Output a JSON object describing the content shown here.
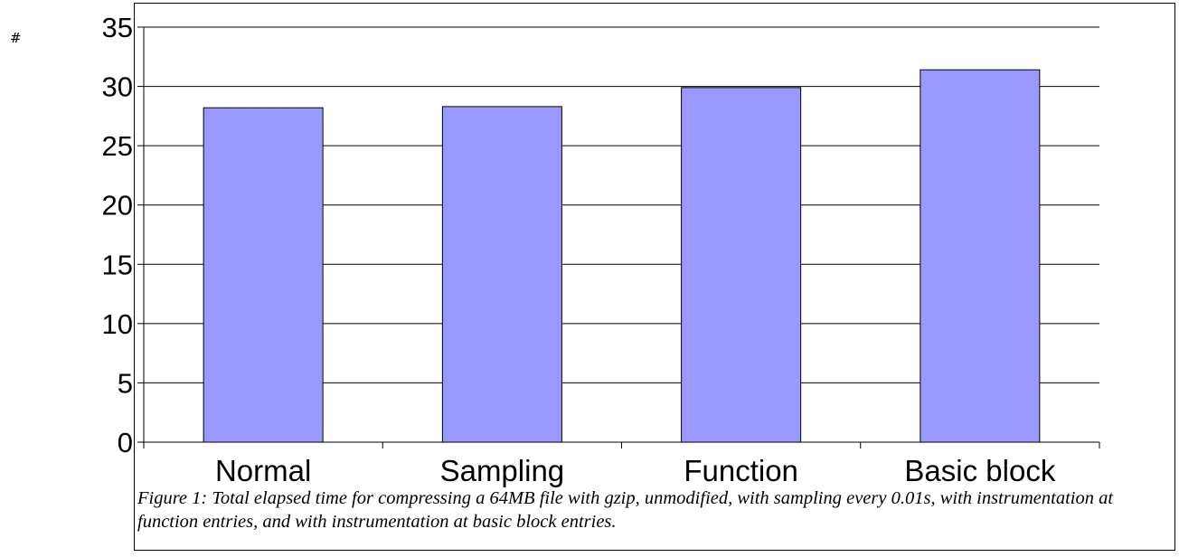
{
  "margin_mark": "#",
  "caption": "Figure 1: Total elapsed time for compressing a 64MB file with gzip, unmodified, with sampling every 0.01s, with instrumentation at function entries, and with instrumentation at basic block entries.",
  "chart_data": {
    "type": "bar",
    "categories": [
      "Normal",
      "Sampling",
      "Function",
      "Basic block"
    ],
    "values": [
      28.2,
      28.3,
      29.9,
      31.4
    ],
    "title": "",
    "xlabel": "",
    "ylabel": "",
    "ylim": [
      0,
      35
    ],
    "yticks": [
      0,
      5,
      10,
      15,
      20,
      25,
      30,
      35
    ],
    "grid": true,
    "bar_color": "#9999ff",
    "bar_outline": "#000000",
    "grid_color": "#000000"
  }
}
